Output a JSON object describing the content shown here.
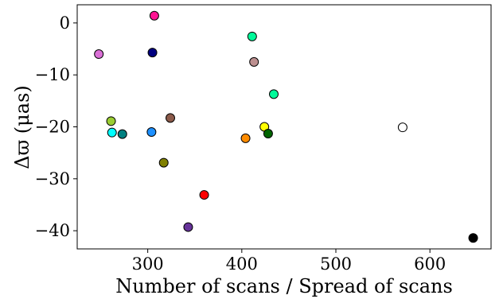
{
  "chart_data": {
    "type": "scatter",
    "title": "",
    "xlabel": "Number of scans / Spread of scans",
    "ylabel": "Δϖ (μas)",
    "xlim": [
      225,
      665
    ],
    "ylim": [
      -43.5,
      3.5
    ],
    "grid": false,
    "legend": "none",
    "x_ticks": [
      {
        "value": 300,
        "label": "300"
      },
      {
        "value": 400,
        "label": "400"
      },
      {
        "value": 500,
        "label": "500"
      },
      {
        "value": 600,
        "label": "600"
      }
    ],
    "y_ticks": [
      {
        "value": 0,
        "label": "0"
      },
      {
        "value": -10,
        "label": "−10"
      },
      {
        "value": -20,
        "label": "−20"
      },
      {
        "value": -30,
        "label": "−30"
      },
      {
        "value": -40,
        "label": "−40"
      }
    ],
    "points": [
      {
        "x": 248,
        "y": -6.0,
        "color": "#da70d6"
      },
      {
        "x": 261,
        "y": -18.9,
        "color": "#9acd32"
      },
      {
        "x": 262,
        "y": -21.1,
        "color": "#00ffff"
      },
      {
        "x": 273,
        "y": -21.4,
        "color": "#008080"
      },
      {
        "x": 304,
        "y": -21.0,
        "color": "#1e90ff"
      },
      {
        "x": 305,
        "y": -5.7,
        "color": "#000080"
      },
      {
        "x": 307,
        "y": 1.4,
        "color": "#ff1493"
      },
      {
        "x": 317,
        "y": -26.9,
        "color": "#808000"
      },
      {
        "x": 324,
        "y": -18.3,
        "color": "#8b5a4a"
      },
      {
        "x": 343,
        "y": -39.3,
        "color": "#663399"
      },
      {
        "x": 360,
        "y": -33.1,
        "color": "#ff0000"
      },
      {
        "x": 404,
        "y": -22.2,
        "color": "#ff8c00"
      },
      {
        "x": 411,
        "y": -2.6,
        "color": "#00fa9a"
      },
      {
        "x": 413,
        "y": -7.5,
        "color": "#bc8f8f"
      },
      {
        "x": 424,
        "y": -20.0,
        "color": "#ffff00"
      },
      {
        "x": 428,
        "y": -21.3,
        "color": "#006400"
      },
      {
        "x": 434,
        "y": -13.7,
        "color": "#00fa9a"
      },
      {
        "x": 571,
        "y": -20.1,
        "color": "#ffffff"
      },
      {
        "x": 646,
        "y": -41.4,
        "color": "#000000"
      }
    ]
  }
}
